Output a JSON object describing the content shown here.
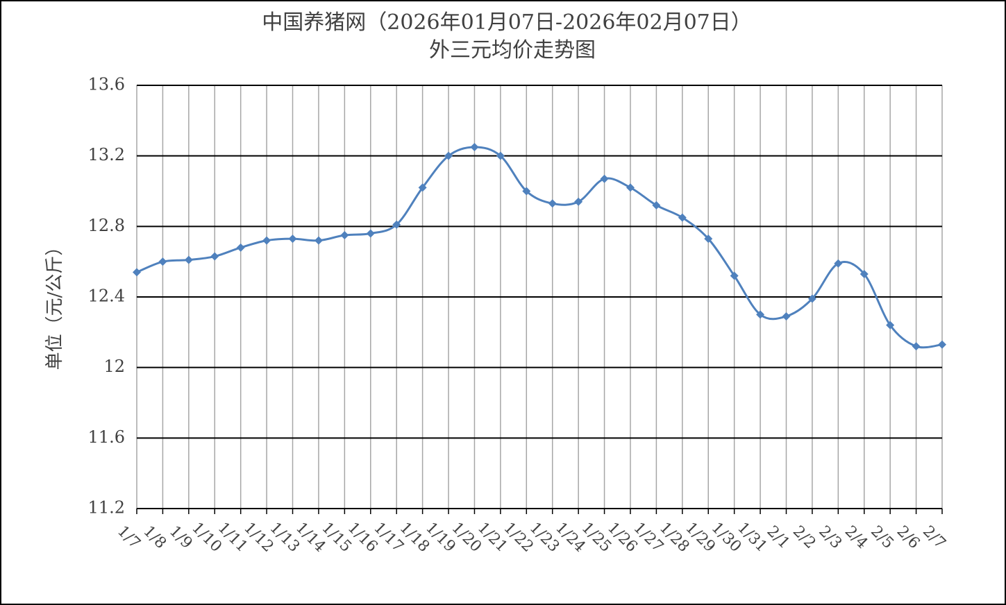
{
  "chart_data": {
    "type": "line",
    "title": "中国养猪网（2026年01月07日-2026年02月07日）",
    "subtitle": "外三元均价走势图",
    "y_label": "单位（元/公斤）",
    "categories": [
      "1/7",
      "1/8",
      "1/9",
      "1/10",
      "1/11",
      "1/12",
      "1/13",
      "1/14",
      "1/15",
      "1/16",
      "1/17",
      "1/18",
      "1/19",
      "1/20",
      "1/21",
      "1/22",
      "1/23",
      "1/24",
      "1/25",
      "1/26",
      "1/27",
      "1/28",
      "1/29",
      "1/30",
      "1/31",
      "2/1",
      "2/2",
      "2/3",
      "2/4",
      "2/5",
      "2/6",
      "2/7"
    ],
    "series": [
      {
        "name": "外三元均价",
        "color": "#4f81bd",
        "values": [
          12.54,
          12.6,
          12.61,
          12.63,
          12.68,
          12.72,
          12.73,
          12.72,
          12.75,
          12.76,
          12.81,
          13.02,
          13.2,
          13.25,
          13.2,
          13.0,
          12.93,
          12.94,
          13.07,
          13.02,
          12.92,
          12.85,
          12.73,
          12.52,
          12.3,
          12.29,
          12.39,
          12.59,
          12.53,
          12.24,
          12.12,
          12.13
        ]
      }
    ],
    "ylim": [
      11.2,
      13.6
    ],
    "yticks": [
      11.2,
      11.6,
      12,
      12.4,
      12.8,
      13.2,
      13.6
    ],
    "grid": true,
    "smooth": true
  }
}
